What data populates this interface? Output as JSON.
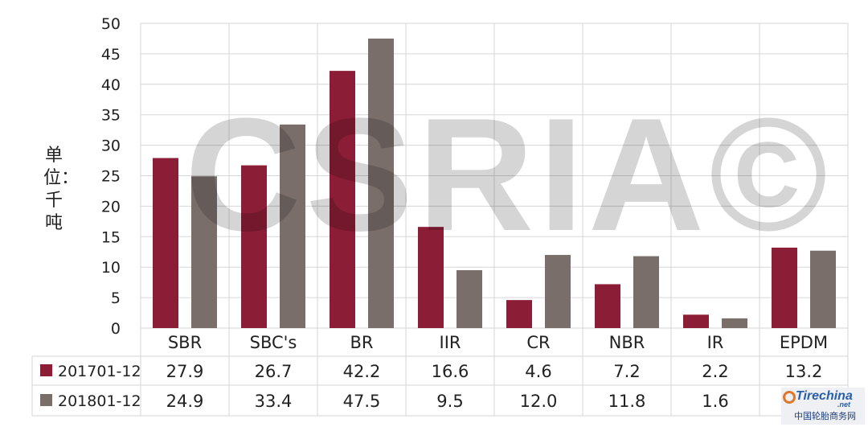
{
  "chart_data": {
    "type": "bar",
    "categories": [
      "SBR",
      "SBC's",
      "BR",
      "IIR",
      "CR",
      "NBR",
      "IR",
      "EPDM"
    ],
    "series": [
      {
        "name": "201701-12",
        "color": "#8b1e36",
        "values": [
          27.9,
          26.7,
          42.2,
          16.6,
          4.6,
          7.2,
          2.2,
          13.2
        ]
      },
      {
        "name": "201801-12",
        "color": "#7a6e6a",
        "values": [
          24.9,
          33.4,
          47.5,
          9.5,
          12.0,
          11.8,
          1.6,
          12.7
        ]
      }
    ],
    "series_labels": [
      [
        "27.9",
        "26.7",
        "42.2",
        "16.6",
        "4.6",
        "7.2",
        "2.2",
        "13.2"
      ],
      [
        "24.9",
        "33.4",
        "47.5",
        "9.5",
        "12.0",
        "11.8",
        "1.6",
        "12.7"
      ]
    ],
    "ylim": [
      0,
      50
    ],
    "yticks": [
      0,
      5,
      10,
      15,
      20,
      25,
      30,
      35,
      40,
      45,
      50
    ],
    "ylabel": "单位：千吨",
    "grid": true
  },
  "watermark": "CSRIA©",
  "logo": {
    "text": "Tirechina",
    "sub": ".net",
    "cn": "中国轮胎商务网"
  }
}
